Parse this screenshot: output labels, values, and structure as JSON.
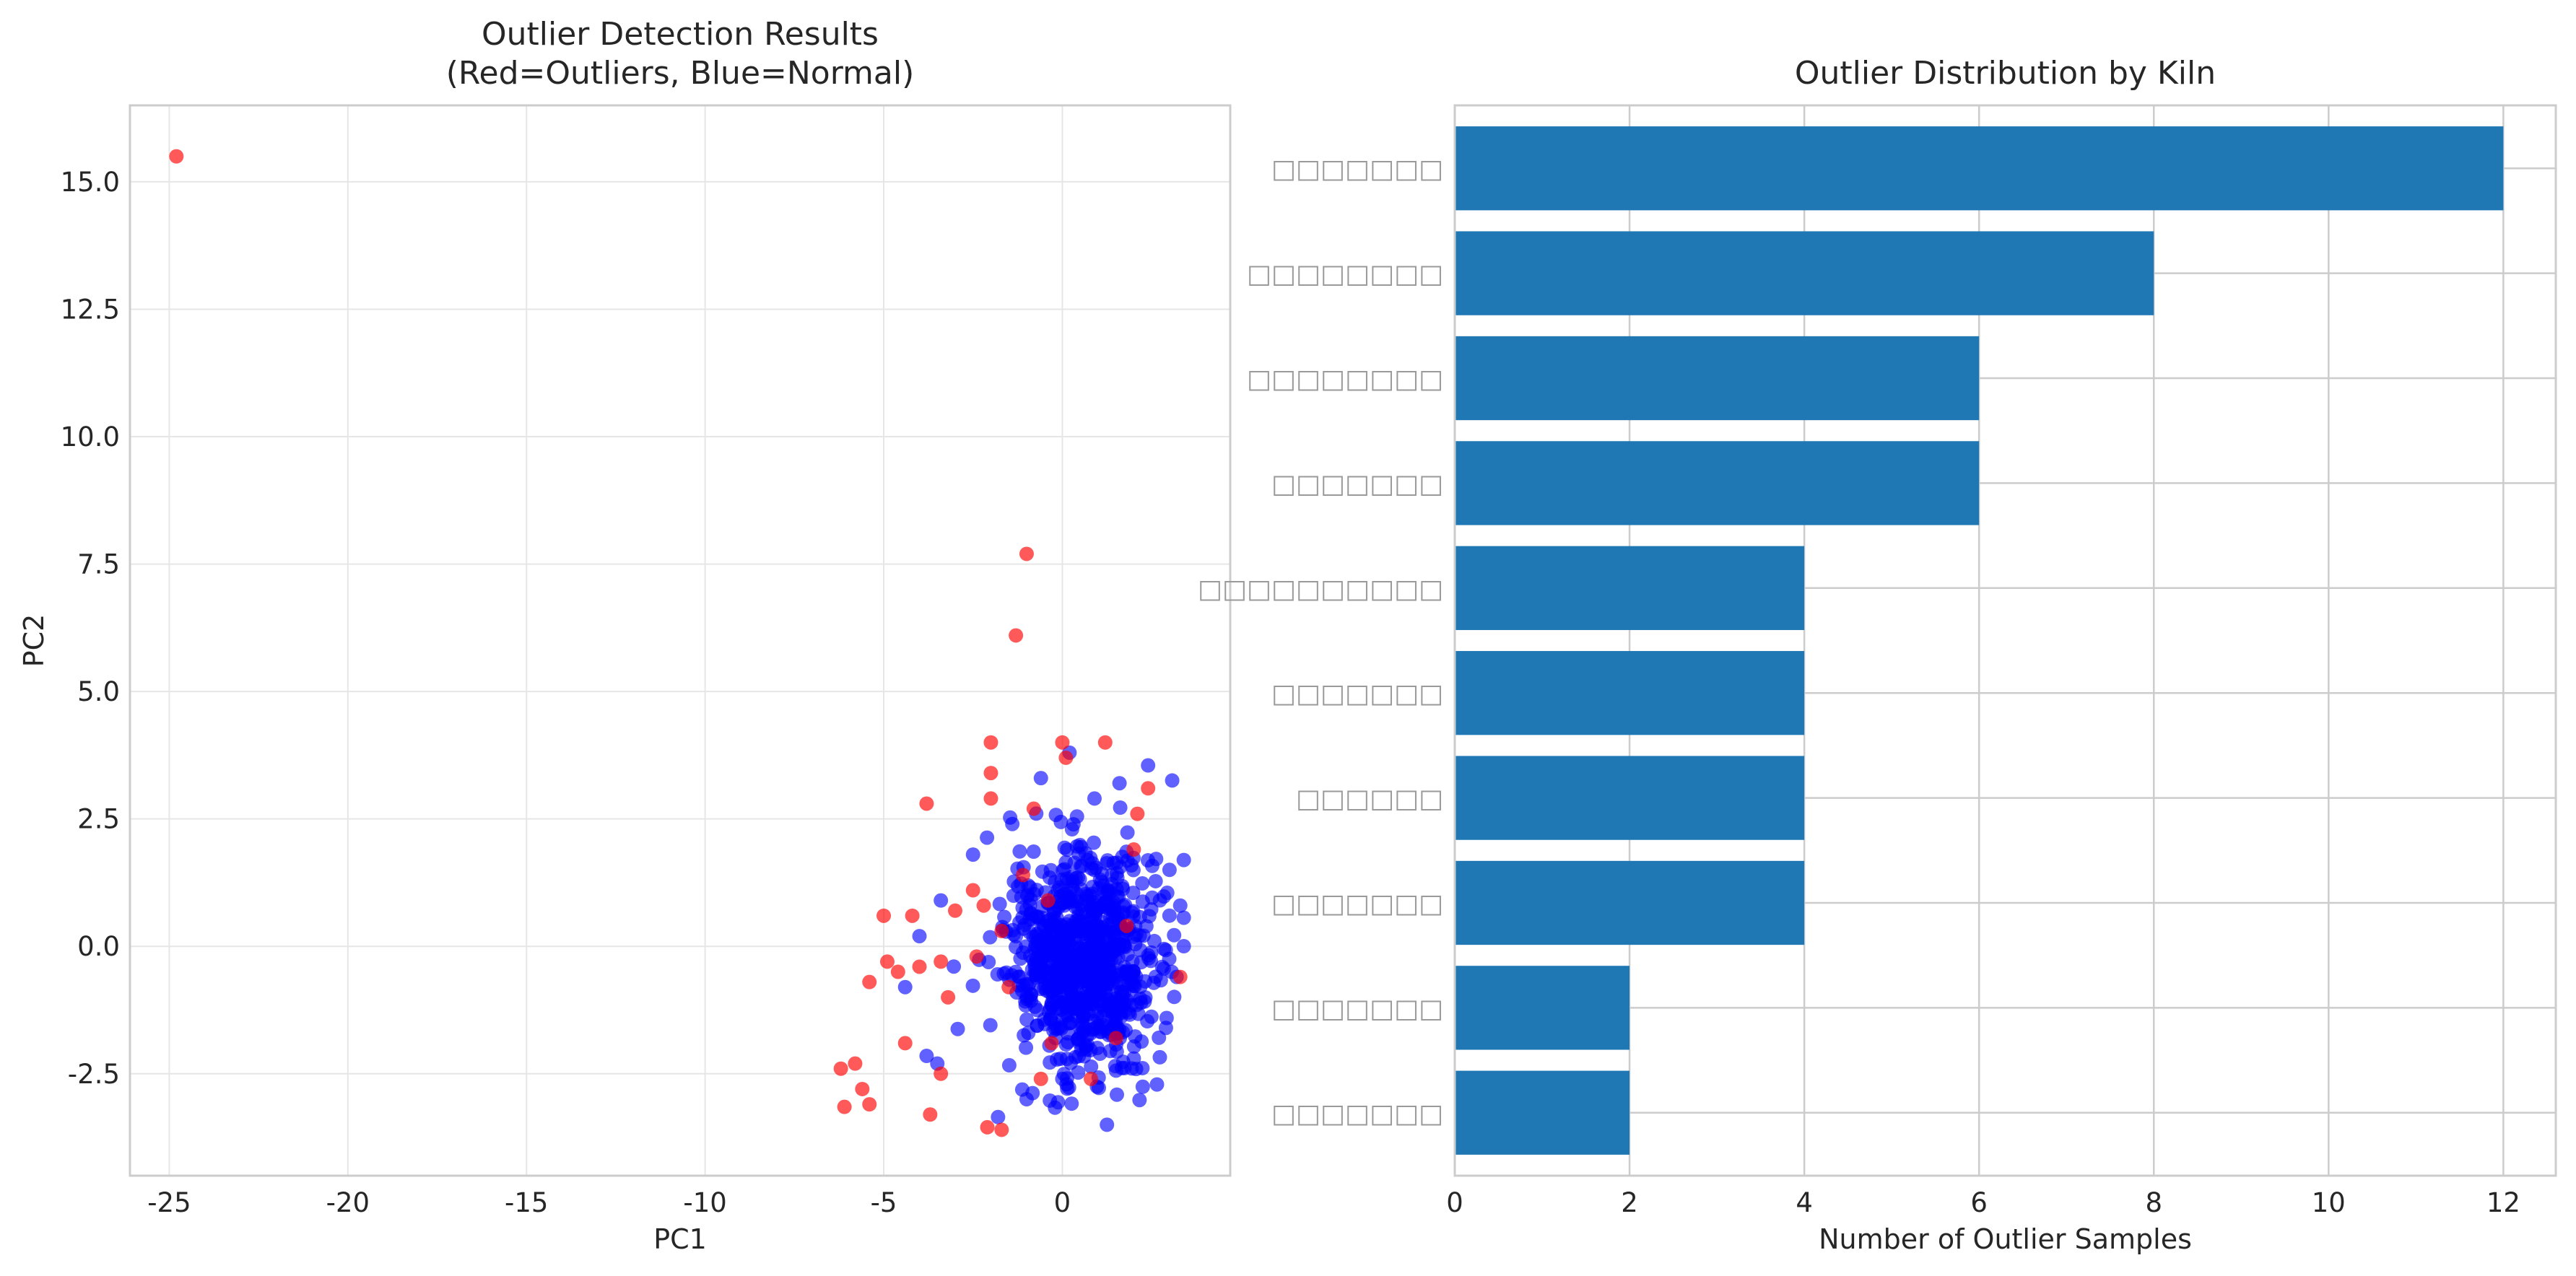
{
  "colors": {
    "outlier": "#ff0000",
    "normal": "#0000ff",
    "bar": "#1f77b4",
    "grid": "#e6e6e6",
    "grid_bar": "#cccccc",
    "spine": "#cccccc"
  },
  "chart_data": [
    {
      "type": "scatter",
      "title": "Outlier Detection Results\n(Red=Outliers, Blue=Normal)",
      "title_lines": [
        "Outlier Detection Results",
        "(Red=Outliers, Blue=Normal)"
      ],
      "xlabel": "PC1",
      "ylabel": "PC2",
      "xlim": [
        -26.1,
        4.7
      ],
      "ylim": [
        -4.5,
        16.5
      ],
      "xticks": [
        -25,
        -20,
        -15,
        -10,
        -5,
        0
      ],
      "xtick_labels": [
        "-25",
        "-20",
        "-15",
        "-10",
        "-5",
        "0"
      ],
      "yticks": [
        -2.5,
        0.0,
        2.5,
        5.0,
        7.5,
        10.0,
        12.5,
        15.0
      ],
      "ytick_labels": [
        "-2.5",
        "0.0",
        "2.5",
        "5.0",
        "7.5",
        "10.0",
        "12.5",
        "15.0"
      ],
      "grid": true,
      "series": [
        {
          "name": "Normal",
          "color": "#0000ff",
          "approx_count": 900,
          "cluster": {
            "center": [
              0.6,
              -0.3
            ],
            "std": [
              1.05,
              1.05
            ],
            "x_range": [
              -4.5,
              3.4
            ],
            "y_range": [
              -3.5,
              3.8
            ]
          },
          "points": [
            [
              -1.8,
              -3.35
            ],
            [
              -1.0,
              -3.0
            ],
            [
              0.0,
              -2.6
            ],
            [
              -3.8,
              -2.15
            ],
            [
              -3.5,
              -2.3
            ],
            [
              -2.5,
              1.8
            ],
            [
              -1.4,
              2.4
            ],
            [
              0.9,
              2.9
            ],
            [
              1.6,
              3.2
            ],
            [
              2.4,
              3.55
            ],
            [
              0.2,
              3.8
            ],
            [
              -0.6,
              3.3
            ],
            [
              3.0,
              1.5
            ],
            [
              3.3,
              0.8
            ],
            [
              3.2,
              -0.6
            ],
            [
              2.9,
              -1.6
            ],
            [
              2.0,
              -2.2
            ],
            [
              -4.4,
              -0.8
            ],
            [
              -4.0,
              0.2
            ],
            [
              -3.4,
              0.9
            ]
          ]
        },
        {
          "name": "Outlier",
          "color": "#ff0000",
          "points": [
            [
              -24.8,
              15.5
            ],
            [
              -1.0,
              7.7
            ],
            [
              -1.3,
              6.1
            ],
            [
              -2.0,
              4.0
            ],
            [
              -2.0,
              3.4
            ],
            [
              0.0,
              4.0
            ],
            [
              1.2,
              4.0
            ],
            [
              2.4,
              3.1
            ],
            [
              -3.8,
              2.8
            ],
            [
              -2.0,
              2.9
            ],
            [
              -0.8,
              2.7
            ],
            [
              0.1,
              3.7
            ],
            [
              2.1,
              2.6
            ],
            [
              -5.0,
              0.6
            ],
            [
              -5.4,
              -0.7
            ],
            [
              -4.9,
              -0.3
            ],
            [
              -4.6,
              -0.5
            ],
            [
              -4.2,
              0.6
            ],
            [
              -4.0,
              -0.4
            ],
            [
              -3.4,
              -0.3
            ],
            [
              -3.0,
              0.7
            ],
            [
              -2.5,
              1.1
            ],
            [
              -2.2,
              0.8
            ],
            [
              -1.7,
              0.3
            ],
            [
              -1.5,
              -0.8
            ],
            [
              -2.4,
              -0.2
            ],
            [
              -0.4,
              0.9
            ],
            [
              -6.2,
              -2.4
            ],
            [
              -5.8,
              -2.3
            ],
            [
              -5.6,
              -2.8
            ],
            [
              -5.4,
              -3.1
            ],
            [
              -6.1,
              -3.15
            ],
            [
              -3.7,
              -3.3
            ],
            [
              -3.4,
              -2.5
            ],
            [
              -2.1,
              -3.55
            ],
            [
              -1.7,
              -3.6
            ],
            [
              -0.6,
              -2.6
            ],
            [
              0.8,
              -2.6
            ],
            [
              -0.3,
              -1.9
            ],
            [
              1.5,
              -1.8
            ],
            [
              3.3,
              -0.6
            ],
            [
              2.0,
              1.9
            ],
            [
              -1.1,
              1.4
            ],
            [
              -3.2,
              -1.0
            ],
            [
              -4.4,
              -1.9
            ],
            [
              1.8,
              0.4
            ]
          ]
        }
      ]
    },
    {
      "type": "bar",
      "orientation": "horizontal",
      "title": "Outlier Distribution by Kiln",
      "xlabel": "Number of Outlier Samples",
      "ylabel": "",
      "xlim": [
        0,
        12.6
      ],
      "xticks": [
        0,
        2,
        4,
        6,
        8,
        10,
        12
      ],
      "xtick_labels": [
        "0",
        "2",
        "4",
        "6",
        "8",
        "10",
        "12"
      ],
      "grid": true,
      "categories": [
        "□□□□□□□",
        "□□□□□□□□",
        "□□□□□□□□",
        "□□□□□□□",
        "□□□□□□□□□□",
        "□□□□□□□",
        "□□□□□□",
        "□□□□□□□",
        "□□□□□□□",
        "□□□□□□□"
      ],
      "values": [
        12,
        8,
        6,
        6,
        4,
        4,
        4,
        4,
        2,
        2
      ]
    }
  ]
}
